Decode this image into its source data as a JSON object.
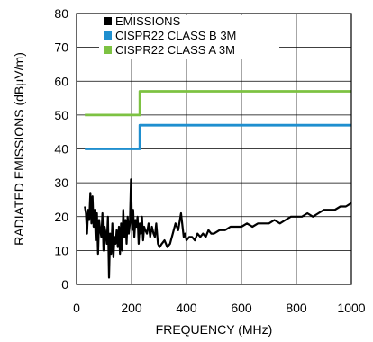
{
  "chart_data": {
    "type": "line",
    "xlabel": "FREQUENCY (MHz)",
    "ylabel": "RADIATED EMISSIONS (dBµV/m)",
    "xlim": [
      0,
      1000
    ],
    "ylim": [
      0,
      80
    ],
    "xticks": [
      0,
      200,
      400,
      600,
      800,
      1000
    ],
    "yticks": [
      0,
      10,
      20,
      30,
      40,
      50,
      60,
      70,
      80
    ],
    "grid": true,
    "legend_position": "top-left",
    "series": [
      {
        "name": "EMISSIONS",
        "color": "#000000",
        "x": [
          30,
          34,
          38,
          42,
          46,
          50,
          54,
          58,
          62,
          66,
          70,
          74,
          78,
          82,
          86,
          90,
          94,
          98,
          102,
          106,
          110,
          114,
          118,
          122,
          126,
          130,
          134,
          138,
          142,
          146,
          150,
          154,
          158,
          162,
          166,
          170,
          174,
          178,
          182,
          186,
          190,
          194,
          198,
          202,
          206,
          210,
          214,
          218,
          222,
          226,
          230,
          234,
          238,
          242,
          246,
          250,
          256,
          262,
          268,
          274,
          280,
          285,
          290,
          296,
          302,
          310,
          320,
          330,
          340,
          350,
          360,
          370,
          380,
          390,
          395,
          400,
          410,
          420,
          430,
          440,
          450,
          460,
          470,
          480,
          490,
          500,
          520,
          540,
          560,
          580,
          600,
          620,
          640,
          660,
          680,
          700,
          720,
          740,
          760,
          780,
          800,
          820,
          840,
          860,
          880,
          900,
          920,
          940,
          960,
          980,
          1000
        ],
        "y": [
          23,
          21,
          15,
          22,
          19,
          27,
          18,
          26,
          17,
          22,
          13,
          21,
          9,
          19,
          16,
          14,
          21,
          10,
          17,
          15,
          12,
          20,
          2,
          15,
          9,
          18,
          8,
          14,
          12,
          16,
          11,
          17,
          9,
          18,
          10,
          22,
          14,
          19,
          12,
          20,
          15,
          18,
          31,
          16,
          22,
          14,
          19,
          17,
          20,
          12,
          18,
          15,
          20,
          13,
          17,
          16,
          15,
          18,
          14,
          17,
          15,
          14,
          18,
          12,
          11,
          12,
          13,
          11,
          12,
          15,
          18,
          16,
          21,
          14,
          15,
          13,
          14,
          14,
          13,
          15,
          14,
          15,
          14,
          16,
          15,
          15,
          16,
          16,
          17,
          17,
          17,
          18,
          17,
          18,
          18,
          18,
          19,
          18,
          19,
          20,
          20,
          20,
          21,
          20,
          21,
          22,
          22,
          22,
          23,
          23,
          24
        ]
      },
      {
        "name": "CISPR22 CLASS B 3M",
        "color": "#1f8fcf",
        "x": [
          30,
          230,
          230,
          1000
        ],
        "y": [
          40,
          40,
          47,
          47
        ]
      },
      {
        "name": "CISPR22 CLASS A 3M",
        "color": "#7dc242",
        "x": [
          30,
          230,
          230,
          1000
        ],
        "y": [
          50,
          50,
          57,
          57
        ]
      }
    ]
  }
}
